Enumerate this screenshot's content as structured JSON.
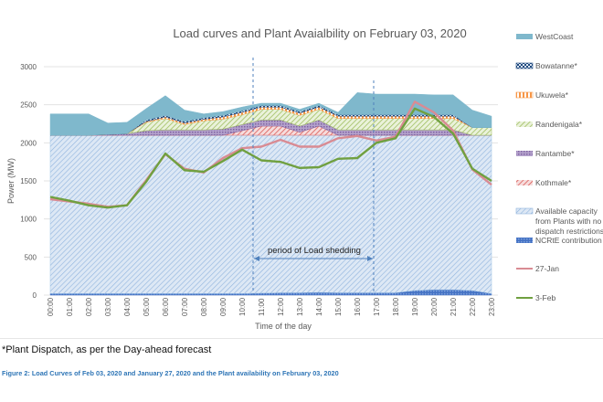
{
  "chart_data": {
    "type": "area",
    "title": "Load curves and Plant Avaialbility on February 03, 2020",
    "xlabel": "Time of the day",
    "ylabel": "Power (MW)",
    "ylim": [
      0,
      3000
    ],
    "yticks": [
      0,
      500,
      1000,
      1500,
      2000,
      2500,
      3000
    ],
    "grid": true,
    "legend_position": "right",
    "categories": [
      "00:00",
      "01:00",
      "02:00",
      "03:00",
      "04:00",
      "05:00",
      "06:00",
      "07:00",
      "08:00",
      "09:00",
      "10:00",
      "11:00",
      "12:00",
      "13:00",
      "14:00",
      "15:00",
      "16:00",
      "17:00",
      "18:00",
      "19:00",
      "20:00",
      "21:00",
      "22:00",
      "23:00"
    ],
    "stacked_areas": [
      {
        "name": "NCRtE contribution",
        "color": "#4472c4",
        "values": [
          20,
          20,
          20,
          20,
          20,
          20,
          20,
          20,
          20,
          20,
          20,
          25,
          30,
          30,
          35,
          30,
          30,
          30,
          30,
          60,
          70,
          70,
          60,
          20
        ]
      },
      {
        "name": "Available capacity from Plants with no dispatch restrictions",
        "color": "#9dc3e6",
        "values": [
          2080,
          2080,
          2080,
          2080,
          2080,
          2080,
          2080,
          2080,
          2080,
          2080,
          2080,
          2075,
          2070,
          2070,
          2065,
          2070,
          2070,
          2070,
          2070,
          2040,
          2030,
          2030,
          2040,
          2080
        ]
      },
      {
        "name": "Kothmale*",
        "color": "#e06666",
        "values": [
          0,
          0,
          0,
          0,
          0,
          0,
          0,
          0,
          0,
          0,
          60,
          120,
          120,
          40,
          120,
          0,
          0,
          0,
          0,
          0,
          0,
          0,
          0,
          0
        ]
      },
      {
        "name": "Rantambe*",
        "color": "#8064a2",
        "values": [
          0,
          0,
          0,
          10,
          20,
          60,
          70,
          70,
          70,
          80,
          80,
          80,
          80,
          80,
          80,
          70,
          70,
          70,
          70,
          70,
          70,
          70,
          0,
          0
        ]
      },
      {
        "name": "Randenigala*",
        "color": "#9bbb59",
        "values": [
          0,
          0,
          0,
          0,
          0,
          110,
          150,
          70,
          120,
          130,
          130,
          140,
          140,
          140,
          140,
          150,
          150,
          150,
          150,
          150,
          150,
          150,
          100,
          100
        ]
      },
      {
        "name": "Ukuwela*",
        "color": "#f79646",
        "values": [
          0,
          0,
          0,
          0,
          0,
          10,
          20,
          20,
          20,
          30,
          30,
          30,
          30,
          30,
          30,
          30,
          30,
          30,
          30,
          30,
          30,
          30,
          0,
          0
        ]
      },
      {
        "name": "Bowatanne*",
        "color": "#1f497d",
        "values": [
          0,
          0,
          0,
          0,
          0,
          20,
          20,
          20,
          20,
          20,
          20,
          20,
          20,
          20,
          20,
          20,
          20,
          20,
          20,
          20,
          20,
          20,
          0,
          0
        ]
      },
      {
        "name": "WestCoast",
        "color": "#7fb8cc",
        "values": [
          280,
          280,
          280,
          150,
          150,
          150,
          260,
          150,
          50,
          50,
          50,
          30,
          30,
          30,
          30,
          30,
          290,
          270,
          270,
          270,
          260,
          260,
          230,
          150
        ]
      }
    ],
    "series": [
      {
        "name": "27-Jan",
        "color": "#d98b93",
        "values": [
          1260,
          1230,
          1200,
          1160,
          1180,
          1510,
          1850,
          1660,
          1610,
          1800,
          1930,
          1950,
          2040,
          1950,
          1950,
          2060,
          2090,
          2030,
          2080,
          2540,
          2400,
          2160,
          1650,
          1450
        ]
      },
      {
        "name": "3-Feb",
        "color": "#70a040",
        "values": [
          1290,
          1240,
          1180,
          1150,
          1180,
          1490,
          1860,
          1640,
          1620,
          1760,
          1910,
          1770,
          1750,
          1670,
          1680,
          1790,
          1800,
          2000,
          2060,
          2450,
          2340,
          2120,
          1660,
          1500
        ]
      }
    ],
    "annotations": [
      {
        "text": "period of Load shedding",
        "from": "10:30",
        "to": "17:00"
      }
    ]
  },
  "legend": [
    {
      "label": "WestCoast"
    },
    {
      "label": "Bowatanne*"
    },
    {
      "label": "Ukuwela*"
    },
    {
      "label": "Randenigala*"
    },
    {
      "label": "Rantambe*"
    },
    {
      "label": "Kothmale*"
    },
    {
      "label": "Available capacity",
      "label2": "from Plants with no",
      "label3": "dispatch restrictions"
    },
    {
      "label": "NCRtE contribution"
    },
    {
      "label": "27-Jan"
    },
    {
      "label": "3-Feb"
    }
  ],
  "footnote": "*Plant Dispatch, as per the Day-ahead forecast",
  "caption": "Figure 2: Load Curves of Feb 03, 2020 and January 27, 2020 and the Plant availability on February 03, 2020"
}
